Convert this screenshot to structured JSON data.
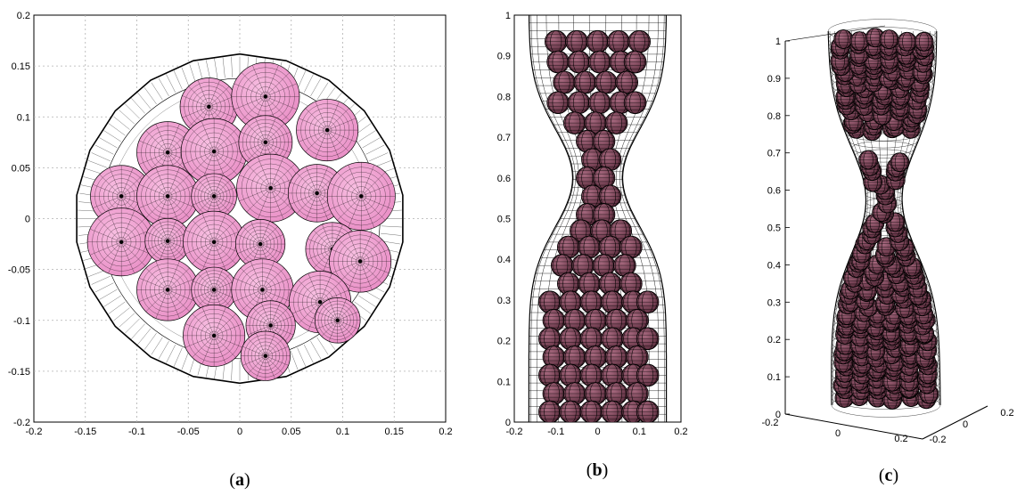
{
  "captions": {
    "a": "a",
    "b": "b",
    "c": "c"
  },
  "colors": {
    "sphere_light": "#f3a6d6",
    "sphere_dark": "#7d4458",
    "mesh": "#000000",
    "grid": "#b0b0b0"
  },
  "chart_data": [
    {
      "type": "scatter",
      "view": "top",
      "xlim": [
        -0.2,
        0.2
      ],
      "ylim": [
        -0.2,
        0.2
      ],
      "x_ticks": [
        "-0.2",
        "-0.15",
        "-0.1",
        "-0.05",
        "0",
        "0.05",
        "0.1",
        "0.15",
        "0.2"
      ],
      "y_ticks": [
        "-0.2",
        "-0.15",
        "-0.1",
        "-0.05",
        "0",
        "0.05",
        "0.1",
        "0.15",
        "0.2"
      ],
      "grid": true,
      "container_radius": 0.16,
      "spheres": [
        {
          "x": -0.03,
          "y": 0.11,
          "r": 0.028
        },
        {
          "x": 0.025,
          "y": 0.12,
          "r": 0.033
        },
        {
          "x": 0.085,
          "y": 0.087,
          "r": 0.03
        },
        {
          "x": -0.07,
          "y": 0.065,
          "r": 0.03
        },
        {
          "x": -0.025,
          "y": 0.066,
          "r": 0.032
        },
        {
          "x": 0.025,
          "y": 0.075,
          "r": 0.026
        },
        {
          "x": -0.115,
          "y": 0.022,
          "r": 0.03
        },
        {
          "x": -0.07,
          "y": 0.022,
          "r": 0.03
        },
        {
          "x": -0.025,
          "y": 0.022,
          "r": 0.022
        },
        {
          "x": 0.03,
          "y": 0.03,
          "r": 0.033
        },
        {
          "x": 0.075,
          "y": 0.025,
          "r": 0.028
        },
        {
          "x": 0.118,
          "y": 0.022,
          "r": 0.033
        },
        {
          "x": -0.115,
          "y": -0.023,
          "r": 0.033
        },
        {
          "x": -0.07,
          "y": -0.022,
          "r": 0.022
        },
        {
          "x": -0.025,
          "y": -0.023,
          "r": 0.03
        },
        {
          "x": 0.02,
          "y": -0.025,
          "r": 0.024
        },
        {
          "x": 0.09,
          "y": -0.03,
          "r": 0.026
        },
        {
          "x": 0.117,
          "y": -0.042,
          "r": 0.03
        },
        {
          "x": -0.07,
          "y": -0.07,
          "r": 0.03
        },
        {
          "x": -0.025,
          "y": -0.07,
          "r": 0.022
        },
        {
          "x": 0.022,
          "y": -0.07,
          "r": 0.03
        },
        {
          "x": 0.078,
          "y": -0.082,
          "r": 0.03
        },
        {
          "x": 0.095,
          "y": -0.1,
          "r": 0.022
        },
        {
          "x": -0.025,
          "y": -0.115,
          "r": 0.03
        },
        {
          "x": 0.03,
          "y": -0.105,
          "r": 0.024
        },
        {
          "x": 0.025,
          "y": -0.135,
          "r": 0.024
        }
      ]
    },
    {
      "type": "scatter",
      "view": "side",
      "xlim": [
        -0.2,
        0.2
      ],
      "ylim": [
        0,
        1
      ],
      "x_ticks": [
        "-0.2",
        "-0.1",
        "0",
        "0.1",
        "0.2"
      ],
      "y_ticks": [
        "0",
        "0.1",
        "0.2",
        "0.3",
        "0.4",
        "0.5",
        "0.6",
        "0.7",
        "0.8",
        "0.9",
        "1"
      ],
      "grid": false
    },
    {
      "type": "scatter",
      "view": "3d",
      "zlim": [
        0,
        1
      ],
      "x_ticks": [
        "-0.2",
        "0",
        "0.2"
      ],
      "y_ticks": [
        "-0.2",
        "0",
        "0.2"
      ],
      "z_ticks": [
        "0",
        "0.1",
        "0.2",
        "0.3",
        "0.4",
        "0.5",
        "0.6",
        "0.7",
        "0.8",
        "0.9",
        "1"
      ],
      "grid": false
    }
  ]
}
